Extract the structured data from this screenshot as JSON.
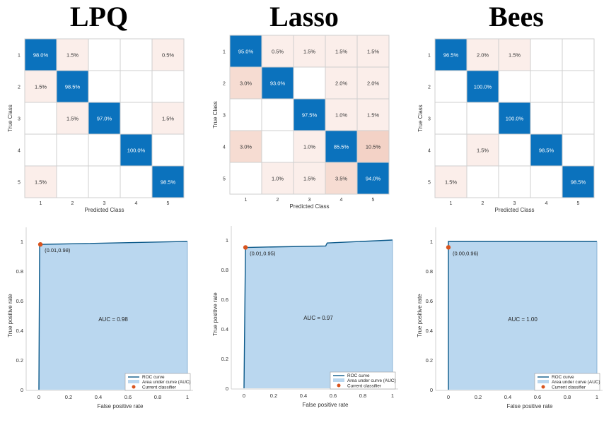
{
  "titles": [
    "LPQ",
    "Lasso",
    "Bees"
  ],
  "chart_data": [
    {
      "type": "heatmap",
      "model": "LPQ",
      "xlabel": "Predicted Class",
      "ylabel": "True Class",
      "classes": [
        "1",
        "2",
        "3",
        "4",
        "5"
      ],
      "cells": [
        [
          "98.0%",
          "1.5%",
          "",
          "",
          "0.5%"
        ],
        [
          "1.5%",
          "98.5%",
          "",
          "",
          ""
        ],
        [
          "",
          "1.5%",
          "97.0%",
          "",
          "1.5%"
        ],
        [
          "",
          "",
          "",
          "100.0%",
          ""
        ],
        [
          "1.5%",
          "",
          "",
          "",
          "98.5%"
        ]
      ]
    },
    {
      "type": "heatmap",
      "model": "Lasso",
      "xlabel": "Predicted Class",
      "ylabel": "True Class",
      "classes": [
        "1",
        "2",
        "3",
        "4",
        "5"
      ],
      "cells": [
        [
          "95.0%",
          "0.5%",
          "1.5%",
          "1.5%",
          "1.5%"
        ],
        [
          "3.0%",
          "93.0%",
          "",
          "2.0%",
          "2.0%"
        ],
        [
          "",
          "",
          "97.5%",
          "1.0%",
          "1.5%"
        ],
        [
          "3.0%",
          "",
          "1.0%",
          "85.5%",
          "10.5%"
        ],
        [
          "",
          "1.0%",
          "1.5%",
          "3.5%",
          "94.0%"
        ]
      ]
    },
    {
      "type": "heatmap",
      "model": "Bees",
      "xlabel": "Predicted Class",
      "ylabel": "True Class",
      "classes": [
        "1",
        "2",
        "3",
        "4",
        "5"
      ],
      "cells": [
        [
          "96.5%",
          "2.0%",
          "1.5%",
          "",
          ""
        ],
        [
          "",
          "100.0%",
          "",
          "",
          ""
        ],
        [
          "",
          "",
          "100.0%",
          "",
          ""
        ],
        [
          "",
          "1.5%",
          "",
          "98.5%",
          ""
        ],
        [
          "1.5%",
          "",
          "",
          "",
          "98.5%"
        ]
      ]
    },
    {
      "type": "area",
      "model": "LPQ",
      "xlabel": "False positive rate",
      "ylabel": "True positive rate",
      "xlim": [
        0,
        1
      ],
      "ylim": [
        0,
        1
      ],
      "xticks": [
        "0",
        "0.2",
        "0.4",
        "0.6",
        "0.8",
        "1"
      ],
      "yticks": [
        "0",
        "0.2",
        "0.4",
        "0.6",
        "0.8",
        "1"
      ],
      "roc_points": [
        [
          0,
          0
        ],
        [
          0.005,
          0.97
        ],
        [
          0.01,
          0.98
        ],
        [
          1,
          1
        ]
      ],
      "current_classifier": {
        "x": 0.01,
        "y": 0.98,
        "label": "(0.01,0.98)"
      },
      "auc_label": "AUC = 0.98",
      "legend": [
        "ROC curve",
        "Area under curve (AUC)",
        "Current classifier"
      ]
    },
    {
      "type": "area",
      "model": "Lasso",
      "xlabel": "False positive rate",
      "ylabel": "True positive rate",
      "xlim": [
        0,
        1
      ],
      "ylim": [
        0,
        1
      ],
      "xticks": [
        "0",
        "0.2",
        "0.4",
        "0.6",
        "0.8",
        "1"
      ],
      "yticks": [
        "0",
        "0.2",
        "0.4",
        "0.6",
        "0.8",
        "1"
      ],
      "roc_points": [
        [
          0,
          0
        ],
        [
          0.01,
          0.95
        ],
        [
          0.55,
          0.96
        ],
        [
          0.56,
          0.98
        ],
        [
          1,
          1
        ]
      ],
      "current_classifier": {
        "x": 0.01,
        "y": 0.95,
        "label": "(0.01,0.95)"
      },
      "auc_label": "AUC = 0.97",
      "legend": [
        "ROC curve",
        "Area under curve (AUC)",
        "Current classifier"
      ]
    },
    {
      "type": "area",
      "model": "Bees",
      "xlabel": "False positive rate",
      "ylabel": "True positive rate",
      "xlim": [
        0,
        1
      ],
      "ylim": [
        0,
        1
      ],
      "xticks": [
        "0",
        "0.2",
        "0.4",
        "0.6",
        "0.8",
        "1"
      ],
      "yticks": [
        "0",
        "0.2",
        "0.4",
        "0.6",
        "0.8",
        "1"
      ],
      "roc_points": [
        [
          0,
          0
        ],
        [
          0,
          1
        ],
        [
          1,
          1
        ]
      ],
      "current_classifier": {
        "x": 0.0,
        "y": 0.96,
        "label": "(0.00,0.96)"
      },
      "auc_label": "AUC = 1.00",
      "legend": [
        "ROC curve",
        "Area under curve (AUC)",
        "Current classifier"
      ]
    }
  ],
  "colors": {
    "diag": "#0b72bd",
    "offdiag_light": "#fbeeea",
    "offdiag_mid": "#f6dcd2",
    "auc_fill": "#bad7ef",
    "roc_line": "#0d5a8a",
    "marker": "#d9541e",
    "grid": "#cfcfcf"
  }
}
